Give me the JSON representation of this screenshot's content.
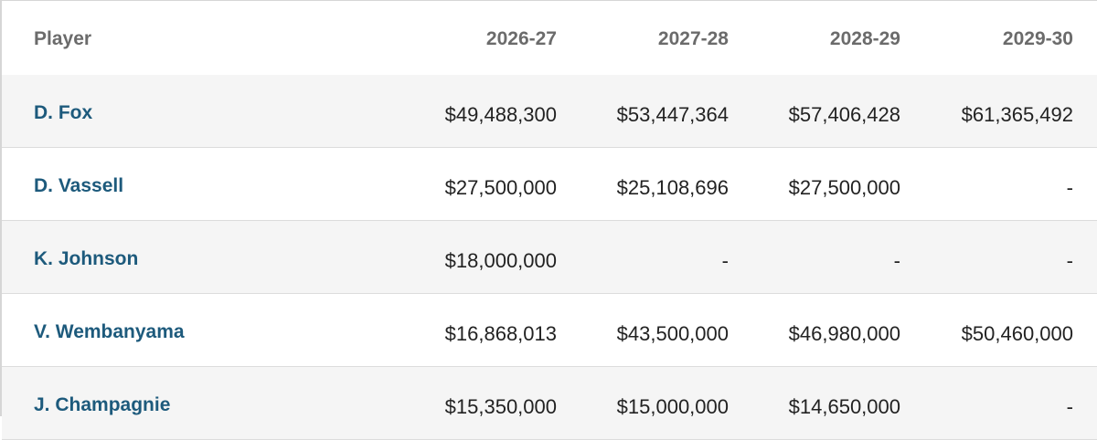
{
  "table": {
    "header": [
      "Player",
      "2026-27",
      "2027-28",
      "2028-29",
      "2029-30"
    ],
    "rows": [
      [
        "D. Fox",
        "$49,488,300",
        "$53,447,364",
        "$57,406,428",
        "$61,365,492"
      ],
      [
        "D. Vassell",
        "$27,500,000",
        "$25,108,696",
        "$27,500,000",
        "-"
      ],
      [
        "K. Johnson",
        "$18,000,000",
        "-",
        "-",
        "-"
      ],
      [
        "V. Wembanyama",
        "$16,868,013",
        "$43,500,000",
        "$46,980,000",
        "$50,460,000"
      ],
      [
        "J. Champagnie",
        "$15,350,000",
        "$15,000,000",
        "$14,650,000",
        "-"
      ]
    ]
  }
}
